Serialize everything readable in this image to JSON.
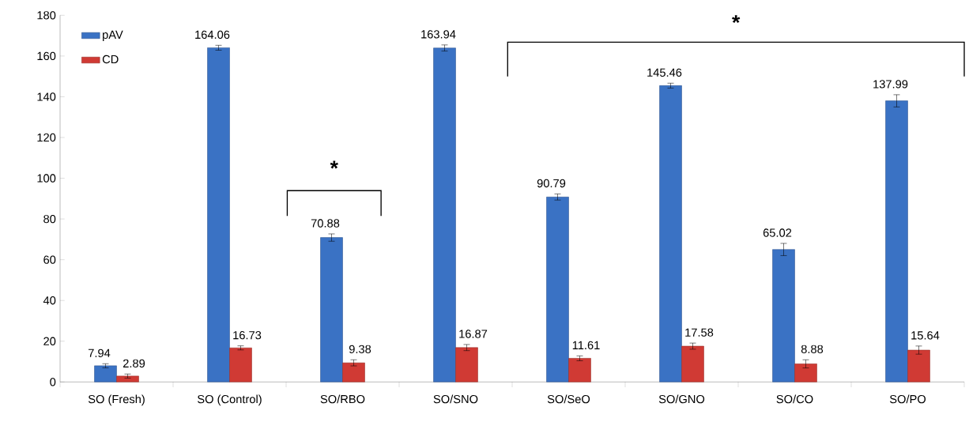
{
  "chart_data": {
    "type": "bar",
    "categories": [
      "SO (Fresh)",
      "SO (Control)",
      "SO/RBO",
      "SO/SNO",
      "SO/SeO",
      "SO/GNO",
      "SO/CO",
      "SO/PO"
    ],
    "series": [
      {
        "name": "pAV",
        "color": "#3a72c4",
        "values": [
          7.94,
          164.06,
          70.88,
          163.94,
          90.79,
          145.46,
          65.02,
          137.99
        ],
        "errors": [
          1,
          1.2,
          1.8,
          1.5,
          1.5,
          1.2,
          3,
          3
        ]
      },
      {
        "name": "CD",
        "color": "#d03a34",
        "values": [
          2.89,
          16.73,
          9.38,
          16.87,
          11.61,
          17.58,
          8.88,
          15.64
        ],
        "errors": [
          1,
          1,
          1.5,
          1.5,
          1.2,
          1.5,
          2,
          2
        ]
      }
    ],
    "ylim": [
      0,
      180
    ],
    "yticks": [
      0,
      20,
      40,
      60,
      80,
      100,
      120,
      140,
      160,
      180
    ],
    "data_labels": true,
    "legend": "top left",
    "annotations": [
      "*",
      "*"
    ]
  }
}
